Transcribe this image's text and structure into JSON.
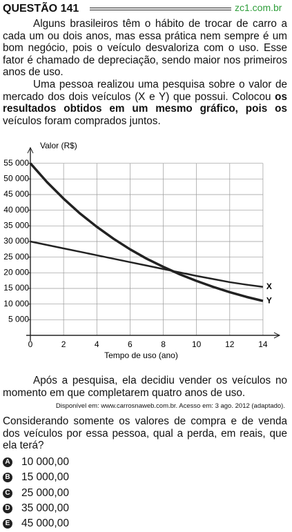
{
  "header": {
    "title": "QUESTÃO 141",
    "site": "zc1.com.br"
  },
  "paragraphs": [
    "Alguns brasileiros têm o hábito de trocar de carro a cada um ou dois anos, mas essa prática nem sempre é um bom negócio, pois o veículo desvaloriza com o uso. Esse fator é chamado de depreciação, sendo maior nos primeiros anos de uso.",
    [
      "Uma pessoa realizou uma pesquisa sobre o valor de mercado dos dois veículos (X e Y) que possui. Colocou ",
      "os resultados obtidos em um mesmo gráfico, pois os",
      " veículos foram comprados juntos."
    ]
  ],
  "chart_data": {
    "type": "line",
    "y_label": "Valor (R$)",
    "x_label": "Tempo de uso (ano)",
    "x": [
      0,
      1,
      2,
      3,
      4,
      5,
      6,
      7,
      8,
      9,
      10,
      11,
      12,
      13,
      14
    ],
    "series": [
      {
        "name": "X",
        "color": "#222222",
        "values": [
          30000,
          28900,
          27800,
          26700,
          25600,
          24500,
          23400,
          22300,
          21200,
          20100,
          19000,
          18000,
          17000,
          16200,
          15500
        ]
      },
      {
        "name": "Y",
        "color": "#222222",
        "values": [
          55000,
          49000,
          43700,
          38900,
          34700,
          30900,
          27500,
          24500,
          21900,
          19500,
          17400,
          15500,
          13800,
          12300,
          11000
        ]
      }
    ],
    "xlim": [
      0,
      15
    ],
    "ylim": [
      0,
      60000
    ],
    "xticks": [
      0,
      2,
      4,
      6,
      8,
      10,
      12,
      14
    ],
    "yticks": [
      {
        "value": 5000,
        "label": "5 000"
      },
      {
        "value": 10000,
        "label": "10 000"
      },
      {
        "value": 15000,
        "label": "15 000"
      },
      {
        "value": 20000,
        "label": "20 000"
      },
      {
        "value": 25000,
        "label": "25 000"
      },
      {
        "value": 30000,
        "label": "30 000"
      },
      {
        "value": 35000,
        "label": "35 000"
      },
      {
        "value": 40000,
        "label": "40 000"
      },
      {
        "value": 45000,
        "label": "45 000"
      },
      {
        "value": 50000,
        "label": "50 000"
      },
      {
        "value": 55000,
        "label": "55 000"
      }
    ],
    "grid": true
  },
  "after": "Após a pesquisa, ela decidiu vender os veículos no momento em que completarem quatro anos de uso.",
  "source": "Disponível em: www.carrosnaweb.com.br. Acesso em: 3 ago. 2012 (adaptado).",
  "question": "Considerando somente os valores de compra e de venda dos veículos por essa pessoa, qual a perda, em reais, que ela terá?",
  "options": [
    {
      "letter": "A",
      "text": "10 000,00"
    },
    {
      "letter": "B",
      "text": "15 000,00"
    },
    {
      "letter": "C",
      "text": "25 000,00"
    },
    {
      "letter": "D",
      "text": "35 000,00"
    },
    {
      "letter": "E",
      "text": "45 000,00"
    }
  ]
}
